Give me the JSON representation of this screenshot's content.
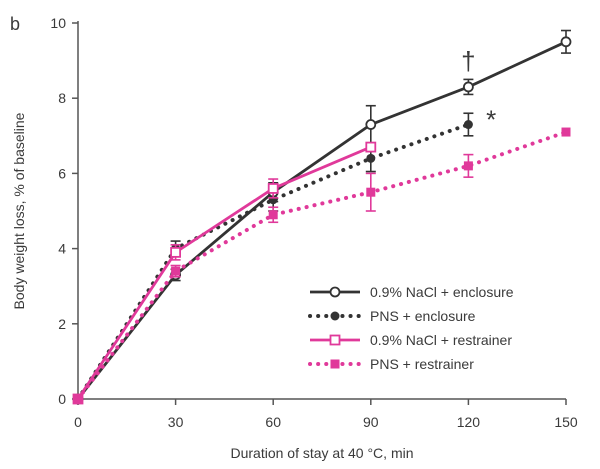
{
  "chart_data": {
    "type": "line",
    "panel_label": "b",
    "xlabel": "Duration of stay at 40 °C, min",
    "ylabel": "Body weight loss, % of baseline",
    "xlim": [
      0,
      150
    ],
    "ylim": [
      0,
      10
    ],
    "x_ticks": [
      0,
      30,
      60,
      90,
      120,
      150
    ],
    "y_ticks": [
      0,
      2,
      4,
      6,
      8,
      10
    ],
    "grid": false,
    "legend_position": "bottom-right",
    "colors": {
      "black": "#333333",
      "magenta": "#e0399a"
    },
    "series": [
      {
        "name": "0.9% NaCl + enclosure",
        "color": "#333333",
        "line": "solid",
        "marker": "circle-open",
        "x": [
          0,
          30,
          60,
          90,
          120,
          150
        ],
        "y": [
          0,
          3.3,
          5.5,
          7.3,
          8.3,
          9.5
        ],
        "err": [
          0,
          0.15,
          0.25,
          0.5,
          0.2,
          0.3
        ]
      },
      {
        "name": "PNS + enclosure",
        "color": "#333333",
        "line": "dotted",
        "marker": "circle-filled",
        "x": [
          0,
          30,
          60,
          90,
          120
        ],
        "y": [
          0,
          4.0,
          5.3,
          6.4,
          7.3
        ],
        "err": [
          0,
          0.2,
          0.3,
          0.35,
          0.3
        ]
      },
      {
        "name": "0.9% NaCl + restrainer",
        "color": "#e0399a",
        "line": "solid",
        "marker": "square-open",
        "x": [
          0,
          30,
          60,
          90
        ],
        "y": [
          0,
          3.9,
          5.6,
          6.7
        ],
        "err": [
          0,
          0.2,
          0.25,
          0
        ]
      },
      {
        "name": "PNS + restrainer",
        "color": "#e0399a",
        "line": "dotted",
        "marker": "square-filled",
        "x": [
          0,
          30,
          60,
          90,
          120,
          150
        ],
        "y": [
          0,
          3.4,
          4.9,
          5.5,
          6.2,
          7.1
        ],
        "err": [
          0,
          0.15,
          0.2,
          0.5,
          0.3,
          0
        ]
      }
    ],
    "annotations": [
      {
        "text": "†",
        "x": 120,
        "y": 8.75
      },
      {
        "text": "*",
        "x": 127,
        "y": 7.2
      }
    ]
  }
}
